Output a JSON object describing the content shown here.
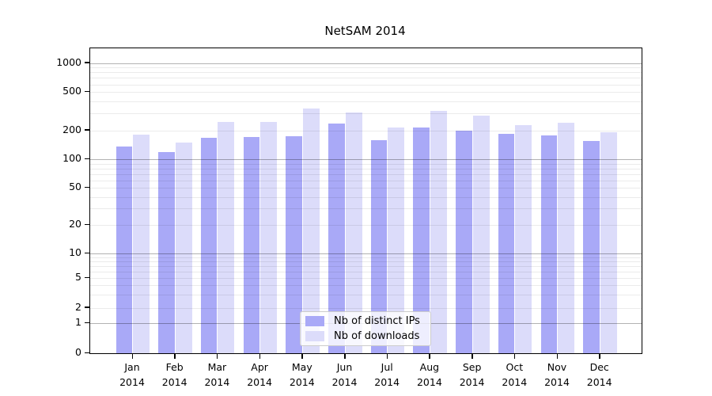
{
  "title": "NetSAM 2014",
  "colors": {
    "ips_bar": "#a9a9f7",
    "downloads_bar": "#dcdcfa",
    "axis": "#000000",
    "grid_major": "rgba(0,0,0,0.30)",
    "grid_minor": "rgba(0,0,0,0.08)",
    "legend_border": "#cccccc"
  },
  "chart_data": {
    "type": "bar",
    "title": "NetSAM 2014",
    "categories": [
      "Jan",
      "Feb",
      "Mar",
      "Apr",
      "May",
      "Jun",
      "Jul",
      "Aug",
      "Sep",
      "Oct",
      "Nov",
      "Dec"
    ],
    "year": "2014",
    "series": [
      {
        "name": "Nb of distinct IPs",
        "color": "#a9a9f7",
        "values": [
          135,
          120,
          168,
          172,
          174,
          237,
          158,
          215,
          200,
          183,
          177,
          155
        ]
      },
      {
        "name": "Nb of downloads",
        "color": "#dcdcfa",
        "values": [
          180,
          150,
          245,
          243,
          335,
          307,
          214,
          318,
          284,
          225,
          240,
          191
        ]
      }
    ],
    "y_axis": {
      "scale": "symlog",
      "ticks": [
        0,
        1,
        2,
        5,
        10,
        20,
        50,
        100,
        200,
        500,
        1000
      ],
      "range": [
        0,
        1000
      ]
    },
    "x_axis": {
      "label": ""
    },
    "legend_position": "lower center",
    "grid": true
  }
}
